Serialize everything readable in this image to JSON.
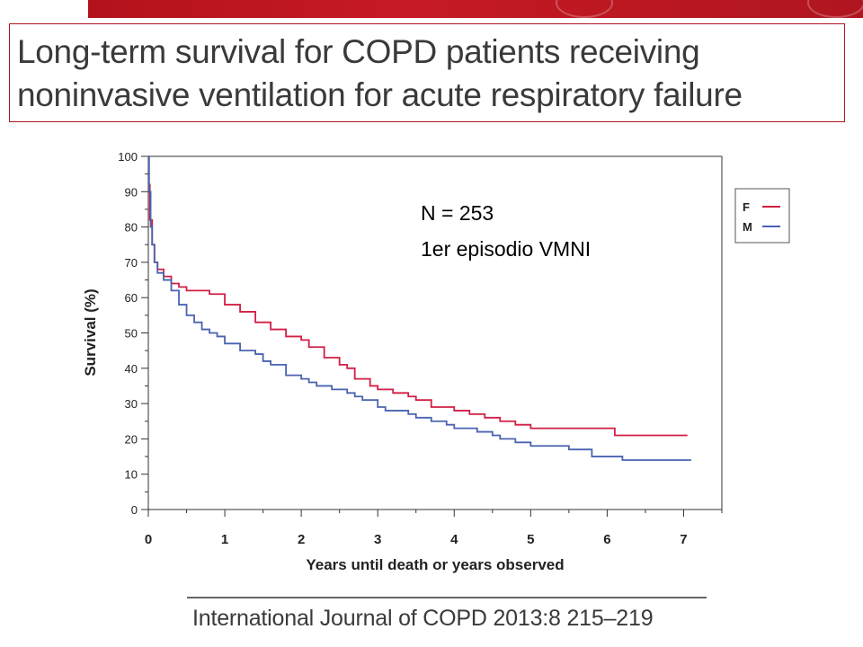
{
  "title": {
    "line1": "Long-term survival for COPD patients receiving",
    "line2": "noninvasive ventilation for acute respiratory failure"
  },
  "footer": "International Journal of COPD 2013:8 215–219",
  "colors": {
    "F": "#d11f45",
    "M": "#4a63b0",
    "banner": "#b3121c"
  },
  "chart_data": {
    "type": "line",
    "xlabel": "Years until death or years observed",
    "ylabel": "Survival (%)",
    "xlim": [
      0,
      7.5
    ],
    "ylim": [
      0,
      100
    ],
    "xticks": [
      0,
      1,
      2,
      3,
      4,
      5,
      6,
      7
    ],
    "yticks": [
      0,
      10,
      20,
      30,
      40,
      50,
      60,
      70,
      80,
      90,
      100
    ],
    "grid": false,
    "legend_position": "outside-top-right",
    "annotations": [
      "N = 253",
      "1er episodio VMNI"
    ],
    "series": [
      {
        "name": "F",
        "color": "#d11f45",
        "x": [
          0,
          0.02,
          0.05,
          0.08,
          0.12,
          0.2,
          0.3,
          0.4,
          0.5,
          0.7,
          0.8,
          1.0,
          1.2,
          1.4,
          1.6,
          1.8,
          2.0,
          2.1,
          2.3,
          2.5,
          2.6,
          2.7,
          2.9,
          3.0,
          3.2,
          3.4,
          3.5,
          3.7,
          4.0,
          4.2,
          4.4,
          4.6,
          4.8,
          5.0,
          5.5,
          6.1,
          6.5,
          7.05
        ],
        "y": [
          92,
          82,
          75,
          70,
          68,
          66,
          64,
          63,
          62,
          62,
          61,
          58,
          56,
          53,
          51,
          49,
          48,
          46,
          43,
          41,
          40,
          37,
          35,
          34,
          33,
          32,
          31,
          29,
          28,
          27,
          26,
          25,
          24,
          23,
          23,
          21,
          21,
          21
        ]
      },
      {
        "name": "M",
        "color": "#4a63b0",
        "x": [
          0,
          0.01,
          0.03,
          0.05,
          0.08,
          0.12,
          0.2,
          0.3,
          0.4,
          0.5,
          0.6,
          0.7,
          0.8,
          0.9,
          1.0,
          1.2,
          1.4,
          1.5,
          1.6,
          1.8,
          2.0,
          2.1,
          2.2,
          2.4,
          2.6,
          2.7,
          2.8,
          3.0,
          3.1,
          3.4,
          3.5,
          3.7,
          3.9,
          4.0,
          4.3,
          4.5,
          4.6,
          4.8,
          5.0,
          5.5,
          5.8,
          6.2,
          7.1
        ],
        "y": [
          100,
          90,
          80,
          75,
          70,
          67,
          65,
          62,
          58,
          55,
          53,
          51,
          50,
          49,
          47,
          45,
          44,
          42,
          41,
          38,
          37,
          36,
          35,
          34,
          33,
          32,
          31,
          29,
          28,
          27,
          26,
          25,
          24,
          23,
          22,
          21,
          20,
          19,
          18,
          17,
          15,
          14,
          14
        ]
      }
    ]
  }
}
